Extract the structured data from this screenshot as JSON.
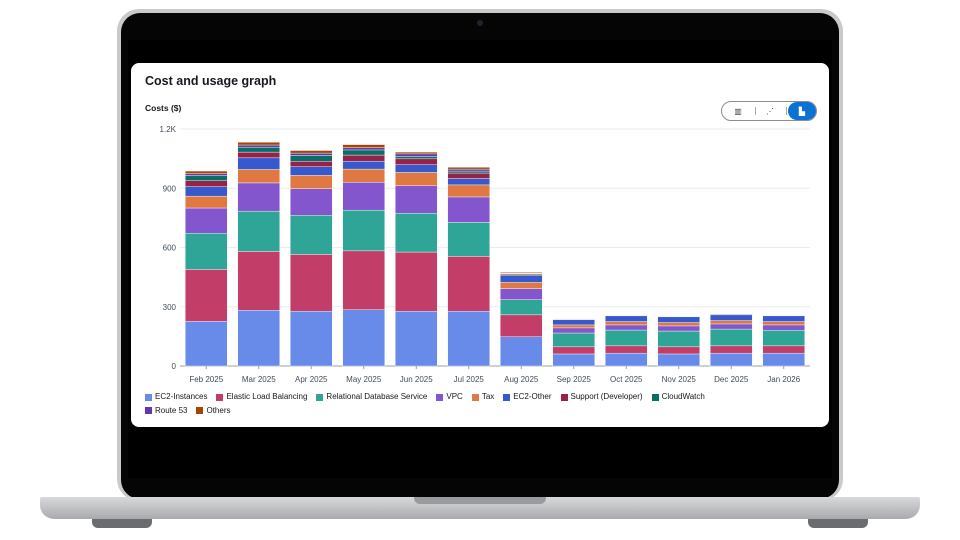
{
  "card": {
    "title": "Cost and usage graph",
    "y_axis_label": "Costs ($)"
  },
  "view_toggle": {
    "options": [
      {
        "icon": "bar-chart-icon",
        "glyph": "▥",
        "selected": false
      },
      {
        "icon": "line-chart-icon",
        "glyph": "⋰",
        "selected": false
      },
      {
        "icon": "stacked-bar-chart-icon",
        "glyph": "▙",
        "selected": true
      }
    ],
    "accent": "#0972d3"
  },
  "chart_data": {
    "type": "bar",
    "stacked": true,
    "ylabel": "Costs ($)",
    "ylim": [
      0,
      1200
    ],
    "yticks": [
      "0",
      "300",
      "600",
      "900",
      "1.2K"
    ],
    "ytick_values": [
      0,
      300,
      600,
      900,
      1200
    ],
    "grid": true,
    "legend_position": "bottom",
    "categories": [
      "Feb 2025",
      "Mar 2025",
      "Apr 2025",
      "May 2025",
      "Jun 2025",
      "Jul 2025",
      "Aug 2025",
      "Sep 2025",
      "Oct 2025",
      "Nov 2025",
      "Dec 2025",
      "Jan 2026"
    ],
    "series": [
      {
        "name": "EC2-Instances",
        "color": "#688ae8",
        "values": [
          226,
          282,
          277,
          285,
          277,
          277,
          148,
          61,
          65,
          61,
          65,
          65
        ]
      },
      {
        "name": "Elastic Load Balancing",
        "color": "#c33d69",
        "values": [
          263,
          298,
          288,
          298,
          300,
          278,
          111,
          36,
          37,
          36,
          37,
          37
        ]
      },
      {
        "name": "Relational Database Service",
        "color": "#2ea597",
        "values": [
          183,
          204,
          198,
          206,
          196,
          172,
          77,
          70,
          80,
          80,
          85,
          79
        ]
      },
      {
        "name": "VPC",
        "color": "#8456ce",
        "values": [
          128,
          143,
          135,
          141,
          140,
          129,
          56,
          26,
          26,
          26,
          26,
          27
        ]
      },
      {
        "name": "Tax",
        "color": "#e07941",
        "values": [
          60,
          68,
          67,
          67,
          67,
          61,
          31,
          15,
          17,
          17,
          17,
          17
        ]
      },
      {
        "name": "EC2-Other",
        "color": "#3759ce",
        "values": [
          48,
          59,
          44,
          40,
          39,
          32,
          34,
          27,
          29,
          29,
          29,
          29
        ]
      },
      {
        "name": "Support (Developer)",
        "color": "#962249",
        "values": [
          30,
          29,
          28,
          31,
          30,
          28,
          5,
          2,
          2,
          1,
          4,
          2
        ]
      },
      {
        "name": "CloudWatch",
        "color": "#096f64",
        "values": [
          26,
          25,
          29,
          26,
          12,
          10,
          5,
          1,
          1,
          1,
          2,
          1
        ]
      },
      {
        "name": "Route 53",
        "color": "#6237a7",
        "values": [
          10,
          11,
          12,
          12,
          13,
          10,
          3,
          1,
          0,
          0,
          1,
          1
        ]
      },
      {
        "name": "Others",
        "color": "#a84401",
        "values": [
          13,
          14,
          13,
          15,
          9,
          9,
          4,
          1,
          1,
          1,
          2,
          2
        ]
      }
    ]
  }
}
